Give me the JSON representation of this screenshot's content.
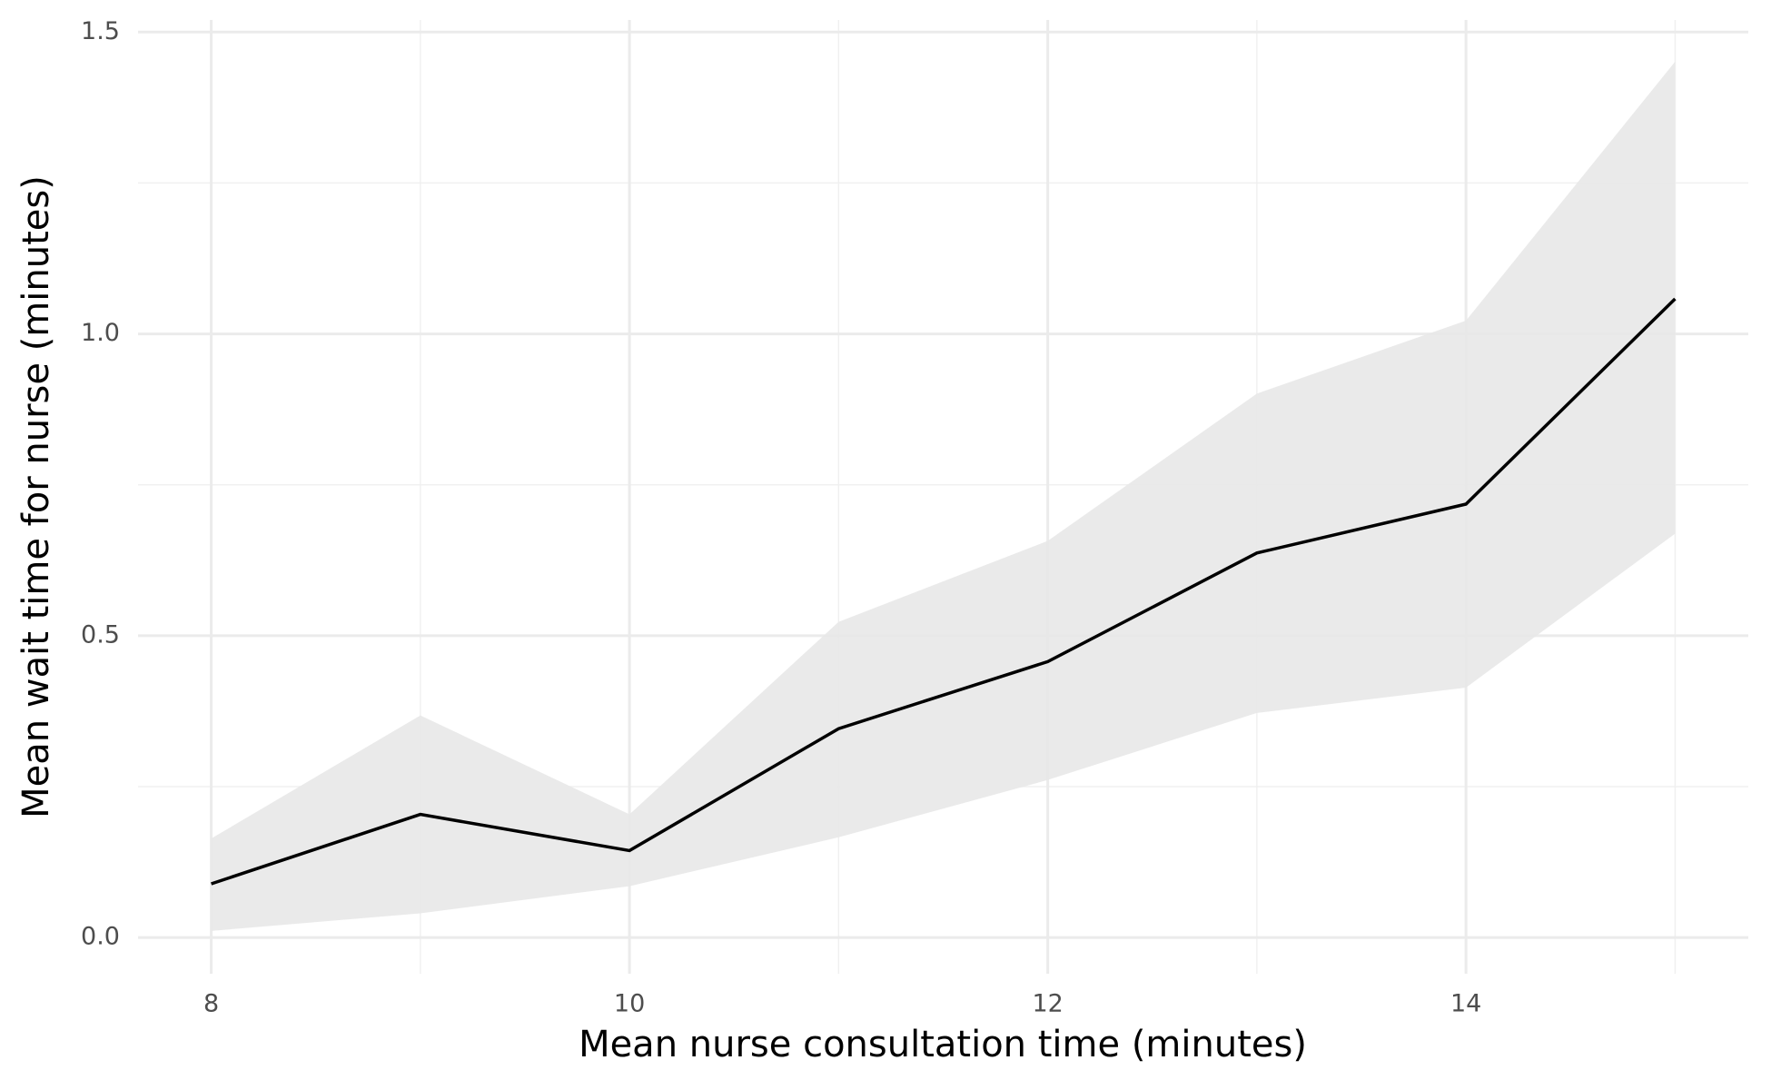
{
  "chart_data": {
    "type": "line",
    "x_label": "Mean nurse consultation time (minutes)",
    "y_label": "Mean wait time for nurse (minutes)",
    "x": [
      8,
      9,
      10,
      11,
      12,
      13,
      14,
      15
    ],
    "values": [
      0.089,
      0.204,
      0.144,
      0.346,
      0.457,
      0.637,
      0.718,
      1.058
    ],
    "upper": [
      0.164,
      0.368,
      0.204,
      0.523,
      0.657,
      0.901,
      1.022,
      1.451
    ],
    "lower": [
      0.011,
      0.04,
      0.085,
      0.166,
      0.261,
      0.372,
      0.414,
      0.669
    ],
    "color": "#000000",
    "band_color": "#e8e8e8",
    "xlim": [
      7.65,
      15.35
    ],
    "ylim": [
      -0.06,
      1.52
    ],
    "xticks": [
      8,
      10,
      12,
      14
    ],
    "xminor": [
      9,
      11,
      13,
      15
    ],
    "yticks": [
      {
        "value": 0,
        "label": "0.0"
      },
      {
        "value": 0.5,
        "label": "0.5"
      },
      {
        "value": 1,
        "label": "1.0"
      },
      {
        "value": 1.5,
        "label": "1.5"
      }
    ],
    "yminor": [
      0.25,
      0.75,
      1.25
    ],
    "grid": true
  }
}
